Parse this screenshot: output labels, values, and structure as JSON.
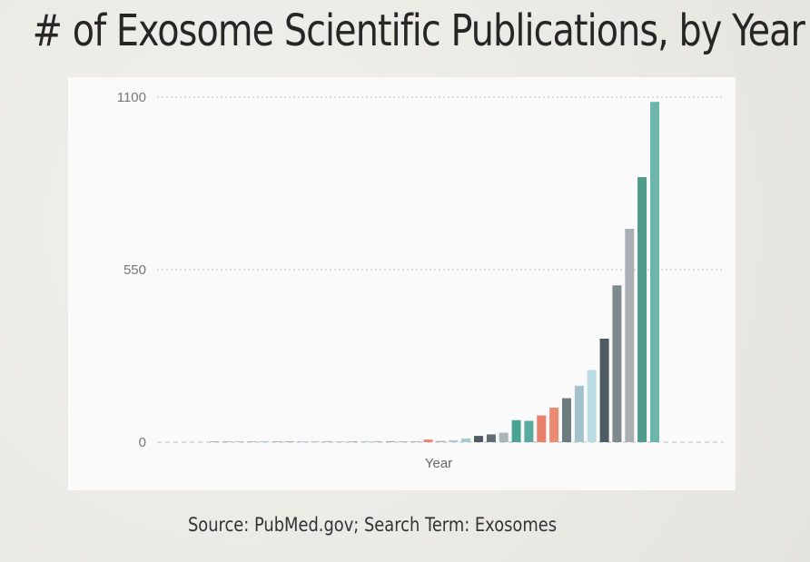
{
  "title": "# of Exosome Scientific Publications, by Year",
  "source": "Source: PubMed.gov; Search Term: Exosomes",
  "chart_data": {
    "type": "bar",
    "title": "",
    "xlabel": "Year",
    "ylabel": "",
    "ylim": [
      0,
      1100
    ],
    "yticks": [
      "1100",
      "550",
      "0"
    ],
    "grid": true,
    "values": [
      1,
      1,
      1,
      1,
      1,
      1,
      1,
      2,
      2,
      2,
      3,
      2,
      2,
      2,
      2,
      2,
      1,
      8,
      4,
      6,
      12,
      20,
      25,
      30,
      70,
      68,
      85,
      110,
      140,
      180,
      230,
      330,
      500,
      680,
      845,
      1085
    ],
    "colors": [
      "#b0b4b8",
      "#b0b4b8",
      "#aac9d1",
      "#b0b4b8",
      "#aac9d1",
      "#b0b4b8",
      "#9aaeb2",
      "#aac9d1",
      "#aac9d1",
      "#b0b4b8",
      "#aac9d1",
      "#b0b4b8",
      "#aac9d1",
      "#b0b4b8",
      "#9aaeb2",
      "#b0b4b8",
      "#b0b4b8",
      "#e8806a",
      "#b0b4b8",
      "#aac9d1",
      "#aac9d1",
      "#4f5b63",
      "#606d74",
      "#aab3b6",
      "#4aa493",
      "#5aab9f",
      "#e8806a",
      "#ea8b72",
      "#6d7c80",
      "#a3c2cb",
      "#bcdde4",
      "#4f5b63",
      "#7f8a8d",
      "#a9b0b3",
      "#4e9b8c",
      "#6db6ab"
    ]
  }
}
